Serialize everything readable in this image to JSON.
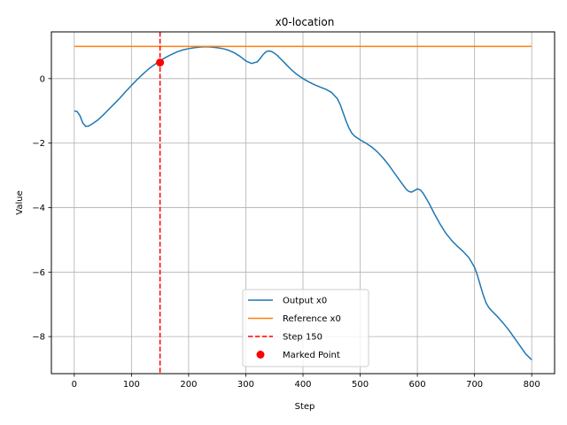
{
  "chart_data": {
    "type": "line",
    "title": "x0-location",
    "xlabel": "Step",
    "ylabel": "Value",
    "xlim": [
      -40,
      840
    ],
    "ylim": [
      -9.15,
      1.45
    ],
    "xticks": [
      0,
      100,
      200,
      300,
      400,
      500,
      600,
      700,
      800
    ],
    "xtick_labels": [
      "0",
      "100",
      "200",
      "300",
      "400",
      "500",
      "600",
      "700",
      "800"
    ],
    "yticks": [
      -8,
      -6,
      -4,
      -2,
      0
    ],
    "ytick_labels": [
      "−8",
      "−6",
      "−4",
      "−2",
      "0"
    ],
    "grid": true,
    "legend_position": "lower center",
    "series": [
      {
        "name": "Output x0",
        "color": "#1f77b4",
        "style": "solid",
        "x": [
          0,
          5,
          10,
          15,
          20,
          25,
          30,
          40,
          50,
          60,
          70,
          80,
          90,
          100,
          110,
          120,
          130,
          140,
          150,
          160,
          170,
          180,
          190,
          200,
          210,
          220,
          230,
          240,
          250,
          260,
          270,
          280,
          290,
          300,
          310,
          320,
          325,
          330,
          335,
          340,
          345,
          350,
          355,
          360,
          370,
          380,
          390,
          400,
          410,
          420,
          430,
          440,
          450,
          460,
          465,
          470,
          475,
          480,
          485,
          490,
          500,
          510,
          520,
          530,
          540,
          550,
          560,
          570,
          580,
          585,
          590,
          595,
          600,
          605,
          610,
          620,
          630,
          640,
          650,
          660,
          670,
          680,
          690,
          700,
          705,
          710,
          715,
          720,
          725,
          730,
          740,
          750,
          760,
          770,
          780,
          790,
          800
        ],
        "values": [
          -1.0,
          -1.02,
          -1.15,
          -1.38,
          -1.48,
          -1.47,
          -1.42,
          -1.3,
          -1.14,
          -0.96,
          -0.78,
          -0.6,
          -0.4,
          -0.21,
          -0.03,
          0.14,
          0.3,
          0.43,
          0.55,
          0.66,
          0.75,
          0.83,
          0.89,
          0.93,
          0.96,
          0.98,
          0.99,
          0.98,
          0.96,
          0.93,
          0.88,
          0.8,
          0.69,
          0.55,
          0.47,
          0.52,
          0.62,
          0.74,
          0.83,
          0.86,
          0.84,
          0.79,
          0.72,
          0.63,
          0.45,
          0.27,
          0.12,
          0.0,
          -0.1,
          -0.19,
          -0.26,
          -0.33,
          -0.43,
          -0.62,
          -0.8,
          -1.05,
          -1.3,
          -1.52,
          -1.68,
          -1.78,
          -1.9,
          -2.0,
          -2.12,
          -2.27,
          -2.46,
          -2.68,
          -2.93,
          -3.18,
          -3.42,
          -3.5,
          -3.52,
          -3.47,
          -3.42,
          -3.45,
          -3.55,
          -3.85,
          -4.2,
          -4.52,
          -4.8,
          -5.02,
          -5.2,
          -5.36,
          -5.55,
          -5.85,
          -6.1,
          -6.4,
          -6.7,
          -6.95,
          -7.1,
          -7.2,
          -7.38,
          -7.58,
          -7.8,
          -8.05,
          -8.3,
          -8.55,
          -8.72
        ]
      },
      {
        "name": "Reference x0",
        "color": "#ff7f0e",
        "style": "solid",
        "x": [
          0,
          800
        ],
        "values": [
          1.0,
          1.0
        ]
      }
    ],
    "vline": {
      "name": "Step 150",
      "x": 150,
      "color": "#ff0000",
      "style": "dashed"
    },
    "point": {
      "name": "Marked Point",
      "x": 150,
      "y": 0.5,
      "color": "#ff0000"
    },
    "legend": [
      "Output x0",
      "Reference x0",
      "Step 150",
      "Marked Point"
    ]
  }
}
